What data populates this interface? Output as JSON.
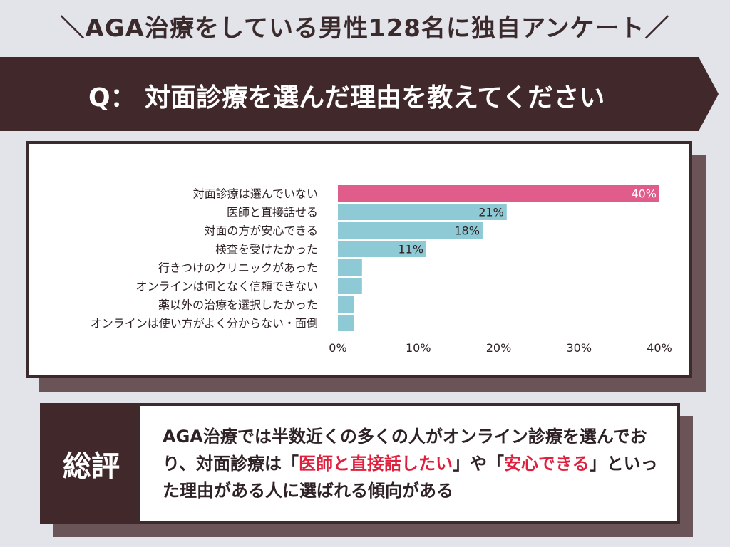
{
  "header": {
    "survey_title": "＼AGA治療をしている男性128名に独自アンケート／",
    "question": "Q： 対面診療を選んだ理由を教えてください"
  },
  "summary": {
    "title": "総評",
    "text_1": "AGA治療では半数近くの多くの人がオンライン診療を選んでおり、対面診療は「",
    "highlight_1": "医師と直接話したい",
    "text_2": "」や「",
    "highlight_2": "安心できる",
    "text_3": "」といった理由がある人に選ばれる傾向がある"
  },
  "colors": {
    "primary_bar": "#e05c8a",
    "secondary_bar": "#8ecad6",
    "dark": "#41282b",
    "highlight": "#e01f3d"
  },
  "chart_data": {
    "type": "bar",
    "orientation": "horizontal",
    "categories": [
      "対面診療は選んでいない",
      "医師と直接話せる",
      "対面の方が安心できる",
      "検査を受けたかった",
      "行きつけのクリニックがあった",
      "オンラインは何となく信頼できない",
      "薬以外の治療を選択したかった",
      "オンラインは使い方がよく分からない・面倒"
    ],
    "values": [
      40,
      21,
      18,
      11,
      3,
      3,
      2,
      2
    ],
    "value_labels": [
      "40%",
      "21%",
      "18%",
      "11%",
      "",
      "",
      "",
      ""
    ],
    "x_ticks": [
      "0%",
      "10%",
      "20%",
      "30%",
      "40%"
    ],
    "xlim": [
      0,
      40
    ],
    "title": "",
    "xlabel": "",
    "ylabel": ""
  }
}
